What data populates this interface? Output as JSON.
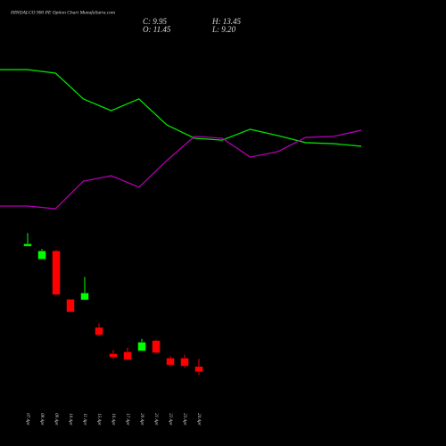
{
  "chart_data": [
    {
      "type": "line",
      "x": [
        0,
        1,
        2,
        3,
        4,
        5,
        6,
        7,
        8,
        9,
        10,
        11,
        12,
        13
      ],
      "xlim": [
        0,
        13
      ],
      "ylim": [
        0,
        100
      ],
      "series": [
        {
          "color": "#00e000",
          "values": [
            90.5,
            90.5,
            88.4,
            73.2,
            66.3,
            73.2,
            57.9,
            50.0,
            48.9,
            55.3,
            51.6,
            47.4,
            46.8,
            45.3
          ]
        },
        {
          "color": "#b000b0",
          "values": [
            10.0,
            10.0,
            8.4,
            24.7,
            27.9,
            21.1,
            36.8,
            51.1,
            50.0,
            38.9,
            42.1,
            50.5,
            51.1,
            54.7
          ]
        }
      ]
    },
    {
      "type": "candlestick",
      "title": "HINDALCO 900 PE Option Chart MunafaSutra.com",
      "info": [
        "C: 9.95",
        "H: 13.45",
        "O: 11.45",
        "L: 9.20"
      ],
      "categories": [
        "07 Apr",
        "08 Apr",
        "09 Apr",
        "10 Apr",
        "11 Apr",
        "15 Apr",
        "16 Apr",
        "17 Apr",
        "20 Apr",
        "21 Apr",
        "22 Apr",
        "23 Apr",
        "24 Apr"
      ],
      "open": [
        43.9,
        40.4,
        42.7,
        29.6,
        29.4,
        22.0,
        14.9,
        15.4,
        15.6,
        18.45,
        13.7,
        13.7,
        11.45
      ],
      "high": [
        47.5,
        43.2,
        43.0,
        29.6,
        35.6,
        23.0,
        15.8,
        16.5,
        18.9,
        18.7,
        14.2,
        14.6,
        13.45
      ],
      "low": [
        43.9,
        40.4,
        30.6,
        26.1,
        29.4,
        19.6,
        13.45,
        13.0,
        15.6,
        14.9,
        11.5,
        11.1,
        9.2
      ],
      "close": [
        44.6,
        42.7,
        30.8,
        26.1,
        31.3,
        19.9,
        13.9,
        13.2,
        18.0,
        15.1,
        11.8,
        11.5,
        9.95
      ],
      "up_color": "#00ff00",
      "down_color": "#ff0000",
      "ylim": [
        8,
        49
      ]
    }
  ]
}
